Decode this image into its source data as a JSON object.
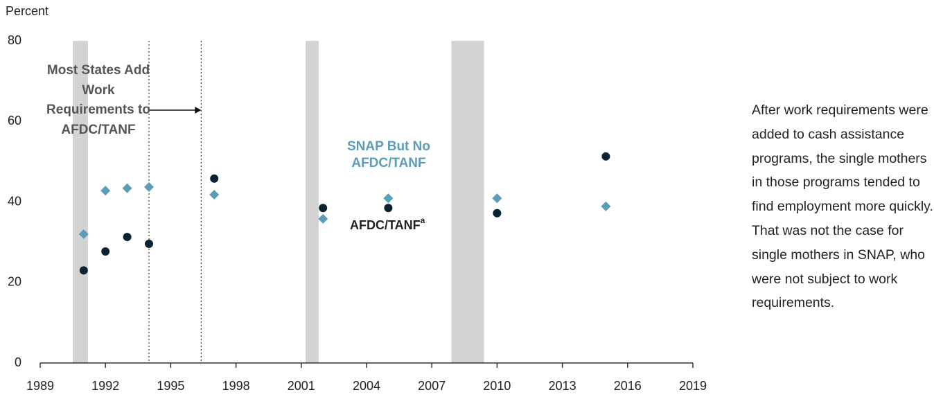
{
  "chart_data": {
    "type": "scatter",
    "y_axis_label": "Percent",
    "xlim": [
      1989,
      2019
    ],
    "xticks": [
      1989,
      1992,
      1995,
      1998,
      2001,
      2004,
      2007,
      2010,
      2013,
      2016,
      2019
    ],
    "ylim": [
      0,
      80
    ],
    "yticks": [
      0,
      20,
      40,
      60,
      80
    ],
    "grid": false,
    "shaded_periods": [
      [
        1990.5,
        1991.2
      ],
      [
        2001.2,
        2001.8
      ],
      [
        2007.9,
        2009.4
      ]
    ],
    "shade_color": "#d3d3d3",
    "reference_lines": [
      1994,
      1996.4
    ],
    "annotation": "Most States Add Work Requirements to AFDC/TANF",
    "series": [
      {
        "name": "SNAP But No AFDC/TANF",
        "color": "#5b9db8",
        "marker": "diamond",
        "x": [
          1991,
          1992,
          1993,
          1994,
          1997,
          2002,
          2005,
          2010,
          2015
        ],
        "values": [
          32,
          42.8,
          43.4,
          43.7,
          41.8,
          35.8,
          40.9,
          40.9,
          38.9
        ]
      },
      {
        "name": "AFDC/TANF",
        "note": "a",
        "color": "#0b2233",
        "marker": "circle",
        "x": [
          1991,
          1992,
          1993,
          1994,
          1997,
          2002,
          2005,
          2010,
          2015
        ],
        "values": [
          23,
          27.7,
          31.3,
          29.6,
          45.8,
          38.5,
          38.5,
          37.2,
          51.3
        ]
      }
    ],
    "side_note": "After work requirements were added to cash assistance programs, the single mothers in those programs tended to find employment more quickly. That was not the case for single mothers in SNAP, who were not subject to work requirements."
  }
}
